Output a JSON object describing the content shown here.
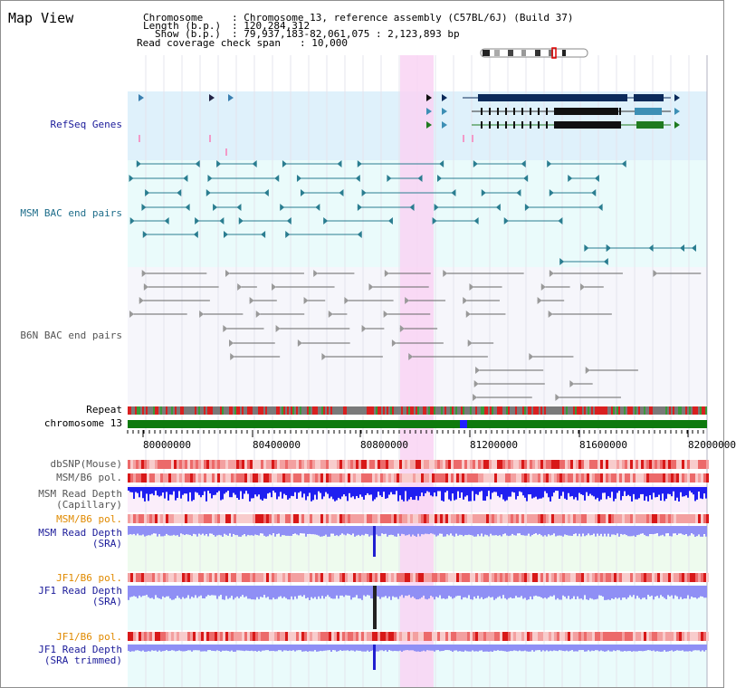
{
  "title": "Map View",
  "info": {
    "chromosome_key": "Chromosome",
    "chromosome_value": ": Chromosome 13, reference assembly (C57BL/6J) (Build 37)",
    "length_key": "Length (b.p.)",
    "length_value": ": 120,284,312",
    "show_key": "Show (b.p.)",
    "show_value": ": 79,937,183-82,061,075 : 2,123,893 bp",
    "coverage_key": "Read coverage check span",
    "coverage_value": ": 10,000"
  },
  "tracks": {
    "refseq": "RefSeq Genes",
    "msm_bac": "MSM BAC end pairs",
    "b6n_bac": "B6N BAC end pairs",
    "repeat": "Repeat",
    "chromosome": "chromosome 13",
    "dbsnp": "dbSNP(Mouse)",
    "msm_pol": "MSM/B6 pol.",
    "msm_depth_cap": "MSM Read Depth\n(Capillary)",
    "msm_pol2": "MSM/B6 pol.",
    "msm_depth_sra": "MSM Read Depth\n(SRA)",
    "jf1_pol": "JF1/B6 pol.",
    "jf1_depth_sra": "JF1 Read Depth\n(SRA)",
    "jf1_pol2": "JF1/B6 pol.",
    "jf1_depth_trim": "JF1 Read Depth\n(SRA trimmed)"
  },
  "axis_ticks": [
    "80000000",
    "80400000",
    "80800000",
    "81200000",
    "81600000",
    "82000000"
  ],
  "colors": {
    "refseq_bg": "#dff1fb",
    "msm_bac_bg": "#eafbfb",
    "highlight": "#f9d4f3",
    "gene_dark": "#0b2a5a",
    "gene_mid": "#3d8fb5",
    "gene_green": "#1f7a1f",
    "bac_msm": "#2a7d90",
    "bac_b6n": "#666666",
    "chromosome": "#0e7a0e",
    "label_blue": "#1b1b9a",
    "label_teal": "#1e6d8a",
    "label_orange": "#e08a00",
    "depth_blue": "#1f1ff0",
    "depth_light": "#8f8ff5",
    "pol_red": "#e02020"
  }
}
